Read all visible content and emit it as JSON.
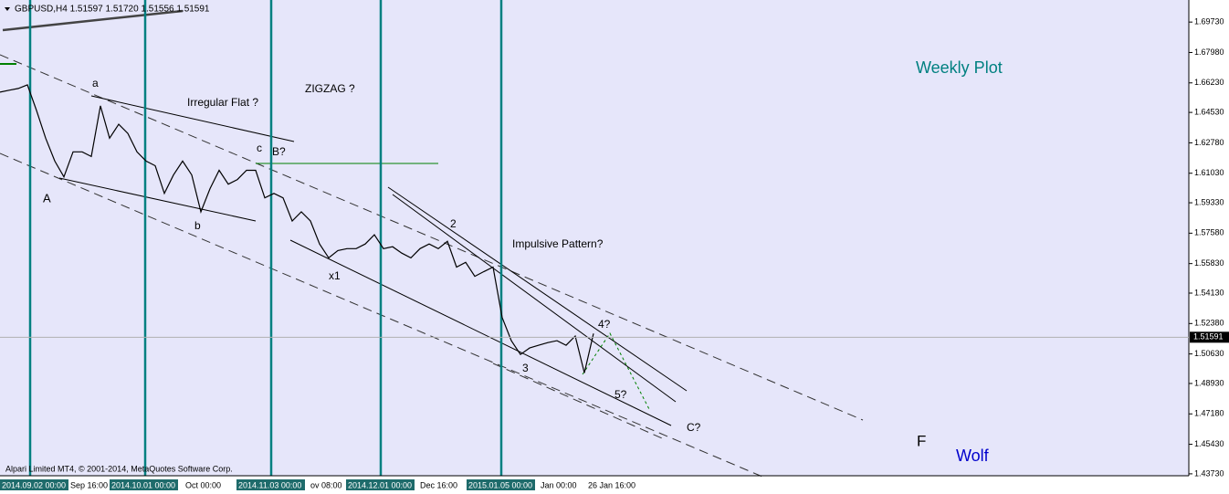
{
  "chart_data": {
    "type": "line",
    "title": "GBPUSD,H4  1.51597 1.51720 1.51556 1.51591",
    "copyright": "Alpari Limited MT4, © 2001-2014, MetaQuotes Software Corp.",
    "series": [
      {
        "name": "GBPUSD",
        "color": "#000000",
        "values": [
          1.657,
          1.6581,
          1.6591,
          1.6612,
          1.6464,
          1.6305,
          1.6173,
          1.6082,
          1.6226,
          1.6226,
          1.6199,
          1.6491,
          1.6305,
          1.6385,
          1.6332,
          1.6226,
          1.6173,
          1.6146,
          1.5987,
          1.6093,
          1.6173,
          1.6093,
          1.5881,
          1.6014,
          1.612,
          1.604,
          1.6067,
          1.612,
          1.612,
          1.5961,
          1.5987,
          1.5961,
          1.5828,
          1.5881,
          1.5828,
          1.5696,
          1.5616,
          1.5658,
          1.5669,
          1.5669,
          1.5696,
          1.5749,
          1.5669,
          1.568,
          1.5643,
          1.5616,
          1.5669,
          1.5696,
          1.5669,
          1.5711,
          1.5563,
          1.559,
          1.551,
          1.5537,
          1.5563,
          1.5272,
          1.5139,
          1.506,
          1.5097,
          1.5113,
          1.5128,
          1.5139,
          1.5113,
          1.5166,
          1.4954,
          1.5181
        ]
      }
    ],
    "current_price": 1.51591,
    "ylim": [
      1.4362,
      1.71
    ],
    "yticks": [
      {
        "value": 1.6973,
        "label": "1.69730"
      },
      {
        "value": 1.6798,
        "label": "1.67980"
      },
      {
        "value": 1.6623,
        "label": "1.66230"
      },
      {
        "value": 1.6453,
        "label": "1.64530"
      },
      {
        "value": 1.6278,
        "label": "1.62780"
      },
      {
        "value": 1.6103,
        "label": "1.61030"
      },
      {
        "value": 1.5933,
        "label": "1.59330"
      },
      {
        "value": 1.5758,
        "label": "1.57580"
      },
      {
        "value": 1.5583,
        "label": "1.55830"
      },
      {
        "value": 1.5413,
        "label": "1.54130"
      },
      {
        "value": 1.5238,
        "label": "1.52380"
      },
      {
        "value": 1.5063,
        "label": "1.50630"
      },
      {
        "value": 1.4893,
        "label": "1.48930"
      },
      {
        "value": 1.4718,
        "label": "1.47180"
      },
      {
        "value": 1.4543,
        "label": "1.45430"
      },
      {
        "value": 1.4373,
        "label": "1.43730"
      }
    ],
    "xtick_labels": [
      "2014.09.02 00:00",
      "Sep 16:00",
      "2014.10.01 00:00",
      "Oct 00:00",
      "2014.11.03 00:00",
      "ov 08:00",
      "2014.12.01 00:00",
      "Dec 16:00",
      "2015.01.05 00:00",
      "Jan 00:00",
      "26 Jan 16:00"
    ],
    "annotations": [
      "a",
      "Irregular Flat  ?",
      "ZIGZAG ?",
      "c",
      "B?",
      "A",
      "b",
      "x1",
      "2",
      "Impulsive Pattern?",
      "4?",
      "3",
      "5?",
      "C?",
      "Weekly Plot",
      "F",
      "Wolf"
    ]
  }
}
